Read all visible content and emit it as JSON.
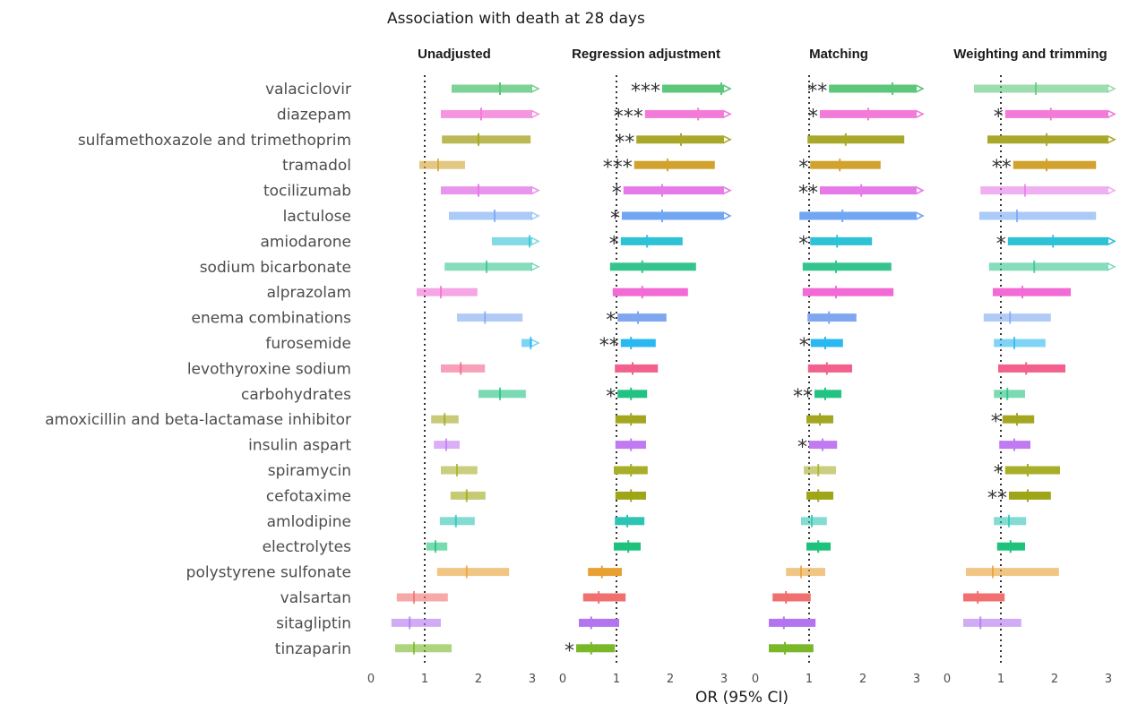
{
  "chart_data": {
    "type": "forest",
    "title": "Association with death at 28 days",
    "xlabel": "OR (95% CI)",
    "xlim": [
      0,
      3
    ],
    "xticks": [
      "0",
      "1",
      "2",
      "3"
    ],
    "reference_line": 1,
    "rows": [
      {
        "name": "valaciclovir",
        "color": "#5cc77a"
      },
      {
        "name": "diazepam",
        "color": "#f27ad9"
      },
      {
        "name": "sulfamethoxazole and trimethoprim",
        "color": "#a9a82a"
      },
      {
        "name": "tramadol",
        "color": "#d1a22e"
      },
      {
        "name": "tocilizumab",
        "color": "#e57ae8"
      },
      {
        "name": "lactulose",
        "color": "#72a6f2"
      },
      {
        "name": "amiodarone",
        "color": "#2ec2d6"
      },
      {
        "name": "sodium bicarbonate",
        "color": "#36c48e"
      },
      {
        "name": "alprazolam",
        "color": "#f26ad4"
      },
      {
        "name": "enema combinations",
        "color": "#7fa7f0"
      },
      {
        "name": "furosemide",
        "color": "#2ab8f0"
      },
      {
        "name": "levothyroxine sodium",
        "color": "#f2608c"
      },
      {
        "name": "carbohydrates",
        "color": "#22c282"
      },
      {
        "name": "amoxicillin and beta-lactamase inhibitor",
        "color": "#a4a620"
      },
      {
        "name": "insulin aspart",
        "color": "#c17af2"
      },
      {
        "name": "spiramycin",
        "color": "#a7ae28"
      },
      {
        "name": "cefotaxime",
        "color": "#9ea618"
      },
      {
        "name": "amlodipine",
        "color": "#2ec4b4"
      },
      {
        "name": "electrolytes",
        "color": "#1ec27a"
      },
      {
        "name": "polystyrene sulfonate",
        "color": "#e8a032"
      },
      {
        "name": "valsartan",
        "color": "#f07070"
      },
      {
        "name": "sitagliptin",
        "color": "#b374f0"
      },
      {
        "name": "tinzaparin",
        "color": "#7ab82a"
      }
    ],
    "panels": [
      {
        "title": "Unadjusted",
        "series": [
          {
            "est": 2.4,
            "lo": 1.5,
            "hi": 3.2,
            "arrow": true,
            "sig": "",
            "alpha": 0.8
          },
          {
            "est": 2.05,
            "lo": 1.3,
            "hi": 3.2,
            "arrow": true,
            "sig": "",
            "alpha": 0.8
          },
          {
            "est": 2.0,
            "lo": 1.32,
            "hi": 2.97,
            "arrow": false,
            "sig": "",
            "alpha": 0.8
          },
          {
            "est": 1.25,
            "lo": 0.9,
            "hi": 1.75,
            "arrow": false,
            "sig": "",
            "alpha": 0.6
          },
          {
            "est": 2.0,
            "lo": 1.3,
            "hi": 3.2,
            "arrow": true,
            "sig": "",
            "alpha": 0.8
          },
          {
            "est": 2.3,
            "lo": 1.45,
            "hi": 3.2,
            "arrow": true,
            "sig": "",
            "alpha": 0.6
          },
          {
            "est": 2.95,
            "lo": 2.25,
            "hi": 3.2,
            "arrow": true,
            "sig": "",
            "alpha": 0.6
          },
          {
            "est": 2.15,
            "lo": 1.37,
            "hi": 3.2,
            "arrow": true,
            "sig": "",
            "alpha": 0.6
          },
          {
            "est": 1.3,
            "lo": 0.85,
            "hi": 1.98,
            "arrow": false,
            "sig": "",
            "alpha": 0.6
          },
          {
            "est": 2.12,
            "lo": 1.6,
            "hi": 2.82,
            "arrow": false,
            "sig": "",
            "alpha": 0.6
          },
          {
            "est": 2.97,
            "lo": 2.8,
            "hi": 3.2,
            "arrow": true,
            "sig": "",
            "alpha": 0.6
          },
          {
            "est": 1.67,
            "lo": 1.3,
            "hi": 2.12,
            "arrow": false,
            "sig": "",
            "alpha": 0.6
          },
          {
            "est": 2.4,
            "lo": 2.0,
            "hi": 2.88,
            "arrow": false,
            "sig": "",
            "alpha": 0.6
          },
          {
            "est": 1.37,
            "lo": 1.12,
            "hi": 1.63,
            "arrow": false,
            "sig": "",
            "alpha": 0.6
          },
          {
            "est": 1.4,
            "lo": 1.17,
            "hi": 1.65,
            "arrow": false,
            "sig": "",
            "alpha": 0.6
          },
          {
            "est": 1.6,
            "lo": 1.3,
            "hi": 1.98,
            "arrow": false,
            "sig": "",
            "alpha": 0.6
          },
          {
            "est": 1.78,
            "lo": 1.48,
            "hi": 2.13,
            "arrow": false,
            "sig": "",
            "alpha": 0.6
          },
          {
            "est": 1.58,
            "lo": 1.28,
            "hi": 1.93,
            "arrow": false,
            "sig": "",
            "alpha": 0.6
          },
          {
            "est": 1.2,
            "lo": 1.03,
            "hi": 1.42,
            "arrow": false,
            "sig": "",
            "alpha": 0.6
          },
          {
            "est": 1.78,
            "lo": 1.23,
            "hi": 2.57,
            "arrow": false,
            "sig": "",
            "alpha": 0.6
          },
          {
            "est": 0.8,
            "lo": 0.48,
            "hi": 1.43,
            "arrow": false,
            "sig": "",
            "alpha": 0.6
          },
          {
            "est": 0.72,
            "lo": 0.38,
            "hi": 1.3,
            "arrow": false,
            "sig": "",
            "alpha": 0.6
          },
          {
            "est": 0.8,
            "lo": 0.45,
            "hi": 1.5,
            "arrow": false,
            "sig": "",
            "alpha": 0.6
          }
        ]
      },
      {
        "title": "Regression adjustment",
        "series": [
          {
            "est": 2.95,
            "lo": 1.85,
            "hi": 3.2,
            "arrow": true,
            "sig": "***",
            "alpha": 1.0
          },
          {
            "est": 2.52,
            "lo": 1.53,
            "hi": 3.2,
            "arrow": true,
            "sig": "***",
            "alpha": 1.0
          },
          {
            "est": 2.2,
            "lo": 1.37,
            "hi": 3.2,
            "arrow": true,
            "sig": "**",
            "alpha": 1.0
          },
          {
            "est": 1.95,
            "lo": 1.33,
            "hi": 2.83,
            "arrow": false,
            "sig": "***",
            "alpha": 1.0
          },
          {
            "est": 1.85,
            "lo": 1.13,
            "hi": 3.2,
            "arrow": true,
            "sig": "*",
            "alpha": 1.0
          },
          {
            "est": 1.85,
            "lo": 1.1,
            "hi": 3.2,
            "arrow": true,
            "sig": "*",
            "alpha": 1.0
          },
          {
            "est": 1.57,
            "lo": 1.08,
            "hi": 2.23,
            "arrow": false,
            "sig": "*",
            "alpha": 1.0
          },
          {
            "est": 1.48,
            "lo": 0.88,
            "hi": 2.48,
            "arrow": false,
            "sig": "",
            "alpha": 1.0
          },
          {
            "est": 1.48,
            "lo": 0.93,
            "hi": 2.33,
            "arrow": false,
            "sig": "",
            "alpha": 1.0
          },
          {
            "est": 1.4,
            "lo": 1.02,
            "hi": 1.93,
            "arrow": false,
            "sig": "*",
            "alpha": 1.0
          },
          {
            "est": 1.27,
            "lo": 1.08,
            "hi": 1.73,
            "arrow": false,
            "sig": "**",
            "alpha": 1.0
          },
          {
            "est": 1.3,
            "lo": 0.97,
            "hi": 1.77,
            "arrow": false,
            "sig": "",
            "alpha": 1.0
          },
          {
            "est": 1.27,
            "lo": 1.02,
            "hi": 1.57,
            "arrow": false,
            "sig": "*",
            "alpha": 1.0
          },
          {
            "est": 1.27,
            "lo": 0.98,
            "hi": 1.55,
            "arrow": false,
            "sig": "",
            "alpha": 1.0
          },
          {
            "est": 1.27,
            "lo": 0.98,
            "hi": 1.55,
            "arrow": false,
            "sig": "",
            "alpha": 1.0
          },
          {
            "est": 1.27,
            "lo": 0.95,
            "hi": 1.58,
            "arrow": false,
            "sig": "",
            "alpha": 1.0
          },
          {
            "est": 1.27,
            "lo": 0.98,
            "hi": 1.55,
            "arrow": false,
            "sig": "",
            "alpha": 1.0
          },
          {
            "est": 1.2,
            "lo": 0.97,
            "hi": 1.52,
            "arrow": false,
            "sig": "",
            "alpha": 1.0
          },
          {
            "est": 1.22,
            "lo": 0.95,
            "hi": 1.45,
            "arrow": false,
            "sig": "",
            "alpha": 1.0
          },
          {
            "est": 0.73,
            "lo": 0.47,
            "hi": 1.1,
            "arrow": false,
            "sig": "",
            "alpha": 1.0
          },
          {
            "est": 0.67,
            "lo": 0.38,
            "hi": 1.17,
            "arrow": false,
            "sig": "",
            "alpha": 1.0
          },
          {
            "est": 0.53,
            "lo": 0.3,
            "hi": 1.05,
            "arrow": false,
            "sig": "",
            "alpha": 1.0
          },
          {
            "est": 0.53,
            "lo": 0.25,
            "hi": 0.97,
            "arrow": false,
            "sig": "*",
            "alpha": 1.0
          }
        ]
      },
      {
        "title": "Matching",
        "series": [
          {
            "est": 2.55,
            "lo": 1.37,
            "hi": 3.2,
            "arrow": true,
            "sig": "**",
            "alpha": 1.0
          },
          {
            "est": 2.1,
            "lo": 1.2,
            "hi": 3.2,
            "arrow": true,
            "sig": "*",
            "alpha": 1.0
          },
          {
            "est": 1.68,
            "lo": 0.97,
            "hi": 2.77,
            "arrow": false,
            "sig": "",
            "alpha": 1.0
          },
          {
            "est": 1.57,
            "lo": 1.02,
            "hi": 2.33,
            "arrow": false,
            "sig": "*",
            "alpha": 1.0
          },
          {
            "est": 1.97,
            "lo": 1.2,
            "hi": 3.2,
            "arrow": true,
            "sig": "**",
            "alpha": 1.0
          },
          {
            "est": 1.62,
            "lo": 0.82,
            "hi": 3.2,
            "arrow": true,
            "sig": "",
            "alpha": 1.0
          },
          {
            "est": 1.52,
            "lo": 1.02,
            "hi": 2.17,
            "arrow": false,
            "sig": "*",
            "alpha": 1.0
          },
          {
            "est": 1.5,
            "lo": 0.88,
            "hi": 2.53,
            "arrow": false,
            "sig": "",
            "alpha": 1.0
          },
          {
            "est": 1.5,
            "lo": 0.88,
            "hi": 2.57,
            "arrow": false,
            "sig": "",
            "alpha": 1.0
          },
          {
            "est": 1.37,
            "lo": 0.97,
            "hi": 1.88,
            "arrow": false,
            "sig": "",
            "alpha": 1.0
          },
          {
            "est": 1.3,
            "lo": 1.03,
            "hi": 1.63,
            "arrow": false,
            "sig": "*",
            "alpha": 1.0
          },
          {
            "est": 1.33,
            "lo": 0.98,
            "hi": 1.8,
            "arrow": false,
            "sig": "",
            "alpha": 1.0
          },
          {
            "est": 1.3,
            "lo": 1.1,
            "hi": 1.6,
            "arrow": false,
            "sig": "**",
            "alpha": 1.0
          },
          {
            "est": 1.2,
            "lo": 0.95,
            "hi": 1.45,
            "arrow": false,
            "sig": "",
            "alpha": 1.0
          },
          {
            "est": 1.25,
            "lo": 1.0,
            "hi": 1.52,
            "arrow": false,
            "sig": "*",
            "alpha": 1.0
          },
          {
            "est": 1.17,
            "lo": 0.9,
            "hi": 1.5,
            "arrow": false,
            "sig": "",
            "alpha": 0.6
          },
          {
            "est": 1.17,
            "lo": 0.95,
            "hi": 1.45,
            "arrow": false,
            "sig": "",
            "alpha": 1.0
          },
          {
            "est": 1.05,
            "lo": 0.85,
            "hi": 1.33,
            "arrow": false,
            "sig": "",
            "alpha": 0.6
          },
          {
            "est": 1.17,
            "lo": 0.95,
            "hi": 1.4,
            "arrow": false,
            "sig": "",
            "alpha": 1.0
          },
          {
            "est": 0.85,
            "lo": 0.57,
            "hi": 1.3,
            "arrow": false,
            "sig": "",
            "alpha": 0.6
          },
          {
            "est": 0.57,
            "lo": 0.32,
            "hi": 1.03,
            "arrow": false,
            "sig": "",
            "alpha": 1.0
          },
          {
            "est": 0.53,
            "lo": 0.25,
            "hi": 1.12,
            "arrow": false,
            "sig": "",
            "alpha": 1.0
          },
          {
            "est": 0.55,
            "lo": 0.25,
            "hi": 1.08,
            "arrow": false,
            "sig": "",
            "alpha": 1.0
          }
        ]
      },
      {
        "title": "Weighting and trimming",
        "series": [
          {
            "est": 1.65,
            "lo": 0.5,
            "hi": 3.2,
            "arrow": true,
            "sig": "",
            "alpha": 0.6
          },
          {
            "est": 1.93,
            "lo": 1.08,
            "hi": 3.2,
            "arrow": true,
            "sig": "*",
            "alpha": 1.0
          },
          {
            "est": 1.85,
            "lo": 0.75,
            "hi": 3.2,
            "arrow": true,
            "sig": "",
            "alpha": 1.0
          },
          {
            "est": 1.85,
            "lo": 1.23,
            "hi": 2.77,
            "arrow": false,
            "sig": "**",
            "alpha": 1.0
          },
          {
            "est": 1.45,
            "lo": 0.62,
            "hi": 3.2,
            "arrow": true,
            "sig": "",
            "alpha": 0.6
          },
          {
            "est": 1.3,
            "lo": 0.6,
            "hi": 2.77,
            "arrow": false,
            "sig": "",
            "alpha": 0.6
          },
          {
            "est": 1.97,
            "lo": 1.13,
            "hi": 3.2,
            "arrow": true,
            "sig": "*",
            "alpha": 1.0
          },
          {
            "est": 1.62,
            "lo": 0.78,
            "hi": 3.2,
            "arrow": true,
            "sig": "",
            "alpha": 0.6
          },
          {
            "est": 1.4,
            "lo": 0.85,
            "hi": 2.3,
            "arrow": false,
            "sig": "",
            "alpha": 1.0
          },
          {
            "est": 1.17,
            "lo": 0.68,
            "hi": 1.93,
            "arrow": false,
            "sig": "",
            "alpha": 0.6
          },
          {
            "est": 1.25,
            "lo": 0.87,
            "hi": 1.83,
            "arrow": false,
            "sig": "",
            "alpha": 0.6
          },
          {
            "est": 1.47,
            "lo": 0.95,
            "hi": 2.2,
            "arrow": false,
            "sig": "",
            "alpha": 1.0
          },
          {
            "est": 1.12,
            "lo": 0.87,
            "hi": 1.45,
            "arrow": false,
            "sig": "",
            "alpha": 0.6
          },
          {
            "est": 1.3,
            "lo": 1.03,
            "hi": 1.62,
            "arrow": false,
            "sig": "*",
            "alpha": 1.0
          },
          {
            "est": 1.25,
            "lo": 0.97,
            "hi": 1.55,
            "arrow": false,
            "sig": "",
            "alpha": 1.0
          },
          {
            "est": 1.5,
            "lo": 1.08,
            "hi": 2.1,
            "arrow": false,
            "sig": "*",
            "alpha": 1.0
          },
          {
            "est": 1.5,
            "lo": 1.15,
            "hi": 1.93,
            "arrow": false,
            "sig": "**",
            "alpha": 1.0
          },
          {
            "est": 1.15,
            "lo": 0.87,
            "hi": 1.47,
            "arrow": false,
            "sig": "",
            "alpha": 0.6
          },
          {
            "est": 1.18,
            "lo": 0.93,
            "hi": 1.45,
            "arrow": false,
            "sig": "",
            "alpha": 1.0
          },
          {
            "est": 0.85,
            "lo": 0.35,
            "hi": 2.08,
            "arrow": false,
            "sig": "",
            "alpha": 0.6
          },
          {
            "est": 0.57,
            "lo": 0.3,
            "hi": 1.07,
            "arrow": false,
            "sig": "",
            "alpha": 1.0
          },
          {
            "est": 0.62,
            "lo": 0.3,
            "hi": 1.38,
            "arrow": false,
            "sig": "",
            "alpha": 0.6
          },
          {
            "est": null,
            "lo": null,
            "hi": null,
            "arrow": false,
            "sig": "",
            "alpha": 0.0
          }
        ]
      }
    ]
  }
}
